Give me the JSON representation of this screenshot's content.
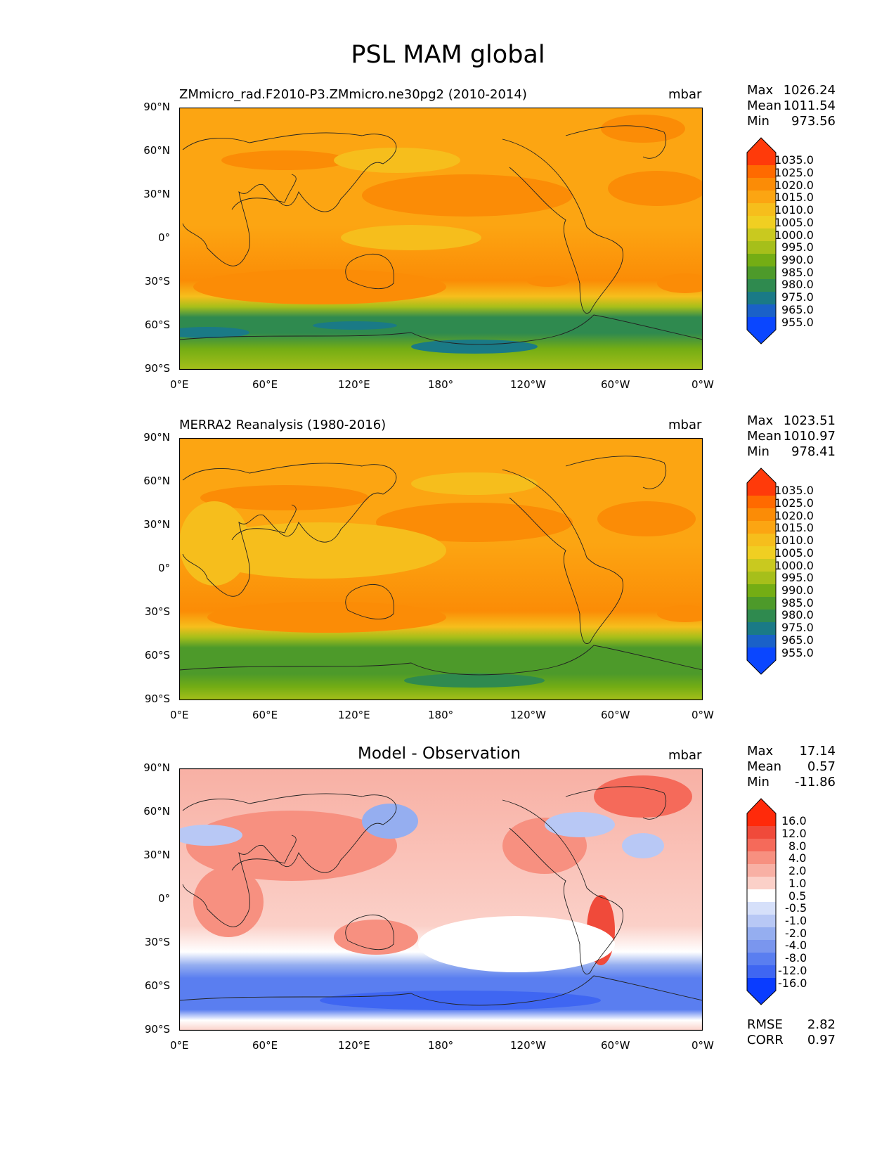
{
  "figure": {
    "title": "PSL MAM global",
    "panels": [
      {
        "title": "ZMmicro_rad.F2010-P3.ZMmicro.ne30pg2 (2010-2014)",
        "units": "mbar",
        "stats": [
          {
            "label": "Max",
            "value": "1026.24"
          },
          {
            "label": "Mean",
            "value": "1011.54"
          },
          {
            "label": "Min",
            "value": "973.56"
          }
        ],
        "colorbar": [
          "1035.0",
          "1025.0",
          "1020.0",
          "1015.0",
          "1010.0",
          "1005.0",
          "1000.0",
          "995.0",
          "990.0",
          "985.0",
          "980.0",
          "975.0",
          "965.0",
          "955.0"
        ]
      },
      {
        "title": "MERRA2 Reanalysis (1980-2016)",
        "units": "mbar",
        "stats": [
          {
            "label": "Max",
            "value": "1023.51"
          },
          {
            "label": "Mean",
            "value": "1010.97"
          },
          {
            "label": "Min",
            "value": "978.41"
          }
        ],
        "colorbar": [
          "1035.0",
          "1025.0",
          "1020.0",
          "1015.0",
          "1010.0",
          "1005.0",
          "1000.0",
          "995.0",
          "990.0",
          "985.0",
          "980.0",
          "975.0",
          "965.0",
          "955.0"
        ]
      },
      {
        "title": "Model - Observation",
        "units": "mbar",
        "stats": [
          {
            "label": "Max",
            "value": "17.14"
          },
          {
            "label": "Mean",
            "value": "0.57"
          },
          {
            "label": "Min",
            "value": "-11.86"
          }
        ],
        "colorbar": [
          "16.0",
          "12.0",
          "8.0",
          "4.0",
          "2.0",
          "1.0",
          "0.5",
          "-0.5",
          "-1.0",
          "-2.0",
          "-4.0",
          "-8.0",
          "-12.0",
          "-16.0"
        ],
        "extra_stats": [
          {
            "label": "RMSE",
            "value": "2.82"
          },
          {
            "label": "CORR",
            "value": "0.97"
          }
        ]
      }
    ],
    "lat_ticks": [
      "90°N",
      "60°N",
      "30°N",
      "0°",
      "30°S",
      "60°S",
      "90°S"
    ],
    "lon_ticks": [
      "0°E",
      "60°E",
      "120°E",
      "180°",
      "120°W",
      "60°W",
      "0°W"
    ]
  },
  "chart_data": [
    {
      "type": "heatmap",
      "title": "ZMmicro_rad.F2010-P3.ZMmicro.ne30pg2 (2010-2014)",
      "variable": "PSL",
      "season": "MAM",
      "units": "mbar",
      "levels": [
        955,
        965,
        975,
        980,
        985,
        990,
        995,
        1000,
        1005,
        1010,
        1015,
        1020,
        1025,
        1035
      ],
      "max": 1026.24,
      "mean": 1011.54,
      "min": 973.56
    },
    {
      "type": "heatmap",
      "title": "MERRA2 Reanalysis (1980-2016)",
      "variable": "PSL",
      "season": "MAM",
      "units": "mbar",
      "levels": [
        955,
        965,
        975,
        980,
        985,
        990,
        995,
        1000,
        1005,
        1010,
        1015,
        1020,
        1025,
        1035
      ],
      "max": 1023.51,
      "mean": 1010.97,
      "min": 978.41
    },
    {
      "type": "heatmap",
      "title": "Model - Observation",
      "variable": "PSL",
      "season": "MAM",
      "units": "mbar",
      "levels": [
        -16,
        -12,
        -8,
        -4,
        -2,
        -1,
        -0.5,
        0.5,
        1,
        2,
        4,
        8,
        12,
        16
      ],
      "max": 17.14,
      "mean": 0.57,
      "min": -11.86,
      "rmse": 2.82,
      "corr": 0.97
    }
  ],
  "colors": {
    "abs_scale": [
      "#ff3a0a",
      "#ff6a00",
      "#fb8c06",
      "#fca512",
      "#f6be1c",
      "#f0cf22",
      "#c9c91f",
      "#a6bf1a",
      "#74ad14",
      "#4d9a2a",
      "#2f8a4f",
      "#1a7a86",
      "#1a61c8",
      "#0a46ff"
    ],
    "diff_scale": [
      "#ff2a0a",
      "#f04a3a",
      "#f56a5a",
      "#f79080",
      "#f8b0a4",
      "#fbd0c8",
      "#ffffff",
      "#d6e0fa",
      "#b8c8f5",
      "#95aef0",
      "#7a96ee",
      "#5a7ef0",
      "#3f66f2",
      "#0a3cff"
    ]
  }
}
